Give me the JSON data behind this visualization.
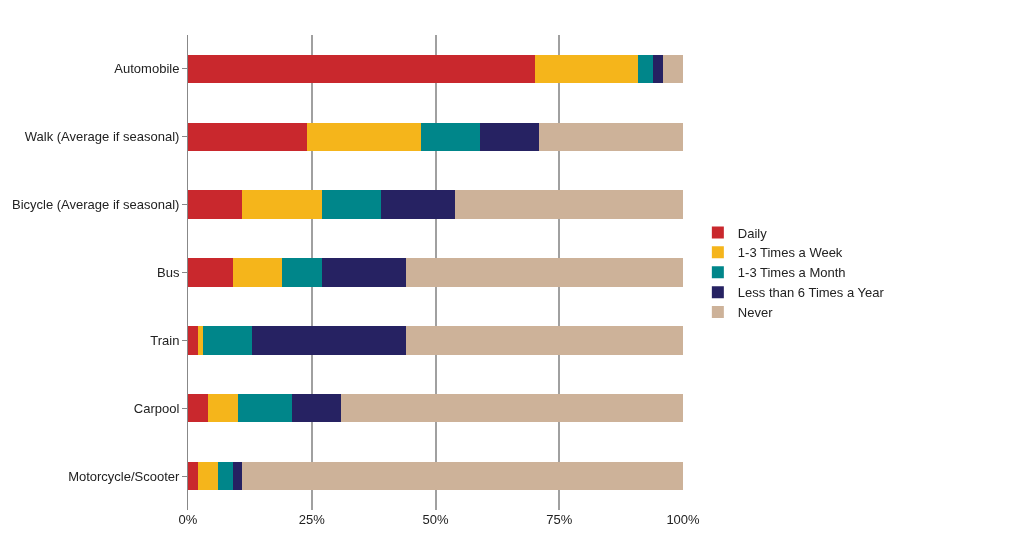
{
  "chart_data": {
    "type": "bar",
    "orientation": "horizontal",
    "stacked": true,
    "categories": [
      "Automobile",
      "Walk (Average if seasonal)",
      "Bicycle (Average if seasonal)",
      "Bus",
      "Train",
      "Carpool",
      "Motorcycle/Scooter"
    ],
    "series": [
      {
        "name": "Daily",
        "color": "#c9282d",
        "values": [
          70,
          24,
          11,
          9,
          2,
          4,
          2
        ]
      },
      {
        "name": "1-3 Times a Week",
        "color": "#f5b51b",
        "values": [
          21,
          23,
          16,
          10,
          1,
          6,
          4
        ]
      },
      {
        "name": "1-3 Times a Month",
        "color": "#00868a",
        "values": [
          3,
          12,
          12,
          8,
          10,
          11,
          3
        ]
      },
      {
        "name": "Less than 6 Times a Year",
        "color": "#262262",
        "values": [
          2,
          12,
          15,
          17,
          31,
          10,
          2
        ]
      },
      {
        "name": "Never",
        "color": "#cdb299",
        "values": [
          4,
          29,
          46,
          56,
          56,
          69,
          89
        ]
      }
    ],
    "xlim": [
      0,
      100
    ],
    "xticks": [
      {
        "value": 0,
        "label": "0%"
      },
      {
        "value": 25,
        "label": "25%"
      },
      {
        "value": 50,
        "label": "50%"
      },
      {
        "value": 75,
        "label": "75%"
      },
      {
        "value": 100,
        "label": "100%"
      }
    ],
    "grid": "x",
    "legend": "right"
  }
}
